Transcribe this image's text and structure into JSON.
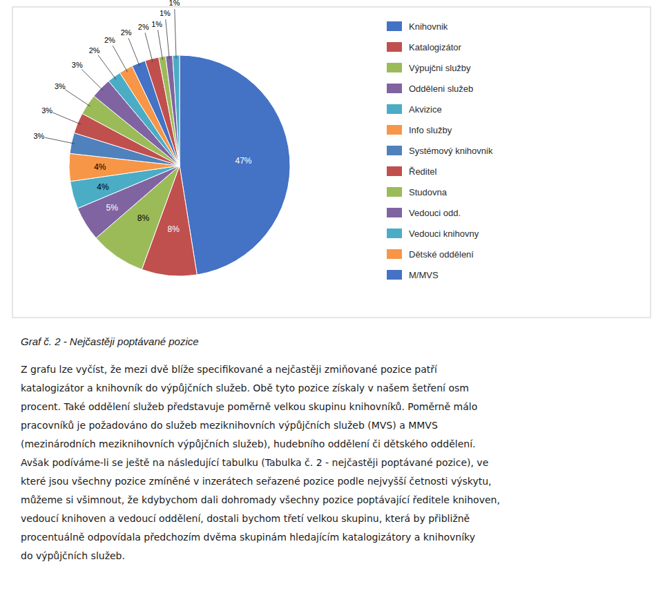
{
  "chart_data": {
    "type": "pie",
    "title": "Graf č. 2 - Nejčastěji poptávané pozice",
    "categories": [
      "Knihovnik",
      "Katalogizátor",
      "Výpujčni služby",
      "Odděleni služeb",
      "Akvizice",
      "Info služby",
      "Systémový knihovnik",
      "Ředitel",
      "Studovna",
      "Vedouci odd.",
      "Vedouci knihovny",
      "Dětské oddělení",
      "M/MVS",
      null,
      null,
      null,
      null
    ],
    "values": [
      47,
      8,
      8,
      5,
      4,
      4,
      3,
      3,
      3,
      3,
      2,
      2,
      2,
      2,
      1,
      1,
      1
    ],
    "value_labels": [
      "47%",
      "8%",
      "8%",
      "5%",
      "4%",
      "4%",
      "3%",
      "3%",
      "3%",
      "3%",
      "2%",
      "2%",
      "2%",
      "2%",
      "1%",
      "1%",
      "1%"
    ],
    "colors": [
      "#4472C4",
      "#C0504D",
      "#9BBB59",
      "#8064A2",
      "#4BACC6",
      "#F79646",
      "#4F81BD",
      "#C0504D",
      "#9BBB59",
      "#8064A2",
      "#4BACC6",
      "#F79646",
      "#4472C4",
      "#C0504D",
      "#9BBB59",
      "#8064A2",
      "#4BACC6"
    ],
    "data_labels": true,
    "legend": "right",
    "annotations": [
      "Z grafu lze vyčíst, že mezi dvě blíže specifikované a nejčastěji zmiňované pozice patří",
      "katalogizátor a knihovník do výpůjčních služeb. Obě tyto pozice získaly v našem šetření osm",
      "procent. Také oddělení služeb představuje poměrně velkou skupinu knihovníků. Poměrně málo",
      "pracovníků je požadováno do služeb meziknihovních výpůjčních služeb (MVS) a MMVS",
      "(mezinárodních meziknihovních výpůjčních služeb), hudebního oddělení či dětského oddělení.",
      "Avšak podíváme-li se ještě na následující tabulku (Tabulka č. 2 - nejčastěji poptávané pozice), ve",
      "které jsou všechny pozice zmíněné v inzerátech seřazené pozice podle nejvyšší četnosti výskytu,",
      "můžeme si všimnout, že kdybychom dali dohromady všechny pozice poptávající ředitele knihoven,",
      "vedoucí knihoven a vedoucí oddělení, dostali bychom třetí velkou skupinu, která by přibližně",
      "procentuálně odpovídala předchozím dvěma skupinám hledajícím katalogizátory a knihovníky",
      "do výpůjčních služeb."
    ]
  }
}
